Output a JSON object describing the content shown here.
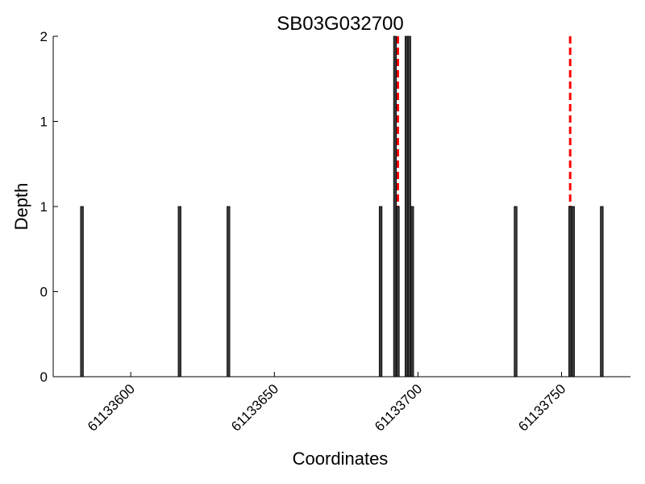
{
  "chart_data": {
    "type": "bar",
    "title": "SB03G032700",
    "xlabel": "Coordinates",
    "ylabel": "Depth",
    "xlim": [
      61133573,
      61133774
    ],
    "ylim": [
      0,
      2
    ],
    "x_ticks": [
      {
        "value": 61133600,
        "label": "61133600"
      },
      {
        "value": 61133650,
        "label": "61133650"
      },
      {
        "value": 61133700,
        "label": "61133700"
      },
      {
        "value": 61133750,
        "label": "61133750"
      }
    ],
    "y_ticks": [
      {
        "value": 0,
        "label": "0"
      },
      {
        "value": 0.5,
        "label": "0"
      },
      {
        "value": 1,
        "label": "1"
      },
      {
        "value": 1.5,
        "label": "1"
      },
      {
        "value": 2,
        "label": "2"
      }
    ],
    "bar_color": "#3a3a3a",
    "bar_edge_color": "#000000",
    "x": [
      61133583,
      61133617,
      61133634,
      61133687,
      61133692,
      61133693,
      61133696,
      61133697,
      61133698,
      61133734,
      61133753,
      61133754,
      61133764
    ],
    "values": [
      1,
      1,
      1,
      1,
      2,
      1,
      2,
      2,
      1,
      1,
      1,
      1,
      1
    ],
    "reference_lines": {
      "color": "#ff0000",
      "style": "dashed",
      "x": [
        61133693,
        61133753
      ]
    },
    "grid": false
  }
}
